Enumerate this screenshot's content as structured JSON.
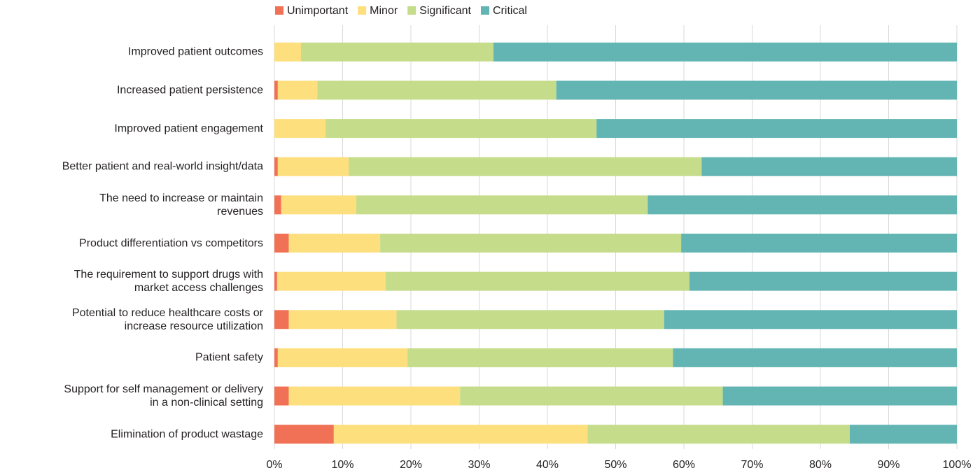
{
  "chart_data": {
    "type": "stacked_barh",
    "categories": [
      "Improved patient outcomes",
      "Increased patient persistence",
      "Improved patient engagement",
      "Better patient and real-world insight/data",
      "The need to increase or maintain\nrevenues",
      "Product differentiation vs competitors",
      "The requirement to support drugs with\nmarket access challenges",
      "Potential to reduce healthcare costs or\nincrease resource utilization",
      "Patient safety",
      "Support for self management or delivery\nin a non-clinical setting",
      "Elimination of product wastage"
    ],
    "series": [
      {
        "name": "Unimportant",
        "color": "#f07155",
        "values": [
          0,
          0.5,
          0,
          0.5,
          1.0,
          2.1,
          0.4,
          2.1,
          0.5,
          2.1,
          8.7
        ]
      },
      {
        "name": "Minor",
        "color": "#fddf7e",
        "values": [
          3.9,
          5.8,
          7.5,
          10.4,
          11.0,
          13.4,
          15.9,
          15.8,
          19.0,
          25.1,
          37.2
        ]
      },
      {
        "name": "Significant",
        "color": "#c5dc8a",
        "values": [
          28.2,
          35.0,
          39.7,
          51.7,
          42.7,
          44.1,
          44.5,
          39.2,
          38.9,
          38.5,
          38.4
        ]
      },
      {
        "name": "Critical",
        "color": "#63b5b4",
        "values": [
          67.9,
          58.7,
          52.8,
          37.4,
          45.3,
          40.4,
          39.2,
          42.9,
          41.6,
          34.3,
          15.7
        ]
      }
    ],
    "xlim": [
      0,
      100
    ],
    "xticks": [
      {
        "value": 0,
        "label": "0%"
      },
      {
        "value": 10,
        "label": "10%"
      },
      {
        "value": 20,
        "label": "20%"
      },
      {
        "value": 30,
        "label": "30%"
      },
      {
        "value": 40,
        "label": "40%"
      },
      {
        "value": 50,
        "label": "50%"
      },
      {
        "value": 60,
        "label": "60%"
      },
      {
        "value": 70,
        "label": "70%"
      },
      {
        "value": 80,
        "label": "80%"
      },
      {
        "value": 90,
        "label": "90%"
      },
      {
        "value": 100,
        "label": "100%"
      }
    ],
    "grid": true,
    "legend": "top"
  }
}
